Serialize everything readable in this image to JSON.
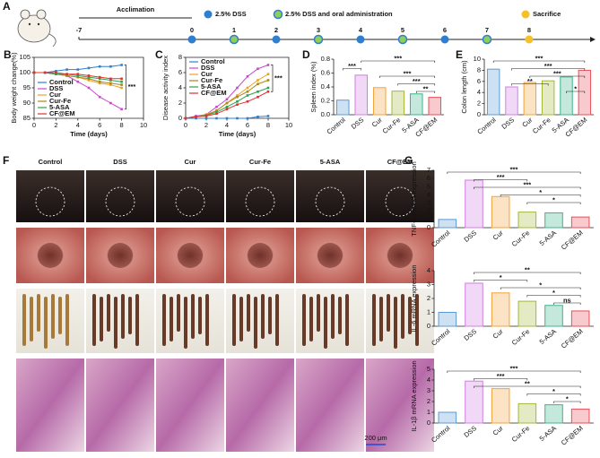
{
  "chart_data": [
    {
      "type": "timeline",
      "panel": "A",
      "annotation": "Acclimation",
      "x": [
        -7,
        0,
        1,
        2,
        3,
        4,
        5,
        6,
        7,
        8
      ],
      "series": [
        {
          "name": "2.5% DSS",
          "color": "#2f7fd0",
          "x": [
            0,
            2,
            4,
            6
          ]
        },
        {
          "name": "2.5% DSS and oral administration",
          "color": "#8fce5a",
          "x": [
            1,
            3,
            5,
            7
          ]
        },
        {
          "name": "Sacrifice",
          "color": "#f5c02a",
          "x": [
            8
          ]
        }
      ]
    },
    {
      "type": "line",
      "panel": "B",
      "ylabel": "Body weight change(%)",
      "xlabel": "Time (days)",
      "x": [
        0,
        1,
        2,
        3,
        4,
        5,
        6,
        7,
        8
      ],
      "xlim": [
        0,
        10
      ],
      "xticks": [
        0,
        2,
        4,
        6,
        8,
        10
      ],
      "ylim": [
        85,
        105
      ],
      "yticks": [
        85,
        90,
        95,
        100,
        105
      ],
      "legend": "lower-left",
      "annotation": "***",
      "series": [
        {
          "name": "Control",
          "color": "#2f7fd0",
          "values": [
            100,
            100,
            100.5,
            101,
            101,
            101.5,
            102,
            102,
            102.5
          ]
        },
        {
          "name": "DSS",
          "color": "#c848c8",
          "values": [
            100,
            100,
            99.5,
            99,
            97,
            95,
            92,
            90,
            88
          ]
        },
        {
          "name": "Cur",
          "color": "#f0a020",
          "values": [
            100,
            100,
            99.5,
            99,
            98.5,
            97.5,
            96.5,
            96,
            95
          ]
        },
        {
          "name": "Cur-Fe",
          "color": "#a8861c",
          "values": [
            100,
            100,
            99.5,
            99,
            98.5,
            98,
            97,
            96.5,
            96
          ]
        },
        {
          "name": "5-ASA",
          "color": "#2fa050",
          "values": [
            100,
            100,
            99.5,
            99.5,
            99,
            98.5,
            98,
            97.5,
            97
          ]
        },
        {
          "name": "CF@EM",
          "color": "#e03030",
          "values": [
            100,
            100,
            100,
            99.5,
            99.5,
            99,
            98.5,
            98,
            98
          ]
        }
      ]
    },
    {
      "type": "line",
      "panel": "C",
      "ylabel": "Disease activity index",
      "xlabel": "Time (days)",
      "x": [
        0,
        1,
        2,
        3,
        4,
        5,
        6,
        7,
        8
      ],
      "xlim": [
        0,
        10
      ],
      "xticks": [
        0,
        2,
        4,
        6,
        8,
        10
      ],
      "ylim": [
        0,
        8
      ],
      "yticks": [
        0,
        2,
        4,
        6,
        8
      ],
      "legend": "upper-left",
      "annotation": "***",
      "series": [
        {
          "name": "Control",
          "color": "#2f7fd0",
          "values": [
            0,
            0,
            0,
            0,
            0,
            0,
            0,
            0.2,
            0.3
          ]
        },
        {
          "name": "DSS",
          "color": "#c848c8",
          "values": [
            0,
            0.3,
            0.5,
            1.5,
            2.5,
            4,
            5.5,
            6.5,
            7
          ]
        },
        {
          "name": "Cur",
          "color": "#f0a020",
          "values": [
            0,
            0.2,
            0.5,
            1,
            2,
            3,
            4,
            5,
            5.8
          ]
        },
        {
          "name": "Cur-Fe",
          "color": "#a8861c",
          "values": [
            0,
            0.2,
            0.4,
            1,
            2,
            2.8,
            3.5,
            4.5,
            5
          ]
        },
        {
          "name": "5-ASA",
          "color": "#2fa050",
          "values": [
            0,
            0.2,
            0.4,
            0.8,
            1.5,
            2.2,
            3,
            3.5,
            4
          ]
        },
        {
          "name": "CF@EM",
          "color": "#e03030",
          "values": [
            0,
            0.2,
            0.3,
            0.6,
            1.2,
            1.8,
            2.2,
            2.8,
            3.5
          ]
        }
      ]
    },
    {
      "type": "bar",
      "panel": "D",
      "ylabel": "Spleen index (%)",
      "categories": [
        "Control",
        "DSS",
        "Cur",
        "Cur-Fe",
        "5-ASA",
        "CF@EM"
      ],
      "values": [
        0.21,
        0.57,
        0.39,
        0.34,
        0.3,
        0.25
      ],
      "colors": [
        "#5b9bd5",
        "#d27fe0",
        "#f2a33a",
        "#a3b83c",
        "#3cb48c",
        "#e8505a"
      ],
      "ylim": [
        0,
        0.8
      ],
      "yticks": [
        {
          "value": 0,
          "label": "0.0"
        },
        0.2,
        0.4,
        0.6,
        0.8
      ],
      "annotations": [
        "***",
        "***",
        "***",
        "***",
        "**"
      ]
    },
    {
      "type": "bar",
      "panel": "E",
      "ylabel": "Colon length (cm)",
      "categories": [
        "Control",
        "DSS",
        "Cur",
        "Cur-Fe",
        "5-ASA",
        "CF@EM"
      ],
      "values": [
        8.2,
        5,
        5.8,
        6.1,
        6.8,
        8
      ],
      "colors": [
        "#5b9bd5",
        "#d27fe0",
        "#f2a33a",
        "#a3b83c",
        "#3cb48c",
        "#e8505a"
      ],
      "ylim": [
        0,
        10
      ],
      "yticks": [
        0,
        2,
        4,
        6,
        8,
        10
      ],
      "annotations": [
        "***",
        "***",
        "***",
        "**",
        "*"
      ]
    },
    {
      "type": "image-grid",
      "panel": "F",
      "categories": [
        "Control",
        "DSS",
        "Cur",
        "Cur-Fe",
        "5-ASA",
        "CF@EM"
      ],
      "scale_bar": "200 μm"
    },
    {
      "type": "bar",
      "panel": "G",
      "ylabel": "TNF-α mRNA expression",
      "categories": [
        "Control",
        "DSS",
        "Cur",
        "Cur-Fe",
        "5-ASA",
        "CF@EM"
      ],
      "values": [
        1,
        5.8,
        3.8,
        1.9,
        1.8,
        1.3
      ],
      "colors": [
        "#5b9bd5",
        "#d27fe0",
        "#f2a33a",
        "#a3b83c",
        "#3cb48c",
        "#e8505a"
      ],
      "ylim": [
        0,
        7
      ],
      "yticks": [
        0,
        1,
        2,
        3,
        4,
        5,
        6,
        7
      ],
      "annotations": [
        "***",
        "***",
        "***",
        "*",
        "*"
      ]
    },
    {
      "type": "bar",
      "ylabel": "IL-6 mRNA expression",
      "categories": [
        "Control",
        "DSS",
        "Cur",
        "Cur-Fe",
        "5-ASA",
        "CF@EM"
      ],
      "values": [
        1,
        3.1,
        2.4,
        1.8,
        1.5,
        1.1
      ],
      "colors": [
        "#5b9bd5",
        "#d27fe0",
        "#f2a33a",
        "#a3b83c",
        "#3cb48c",
        "#e8505a"
      ],
      "ylim": [
        0,
        4
      ],
      "yticks": [
        0,
        1,
        2,
        3,
        4
      ],
      "annotations": [
        "**",
        "*",
        "*",
        "*",
        "ns"
      ]
    },
    {
      "type": "bar",
      "ylabel": "IL-1β mRNA expression",
      "categories": [
        "Control",
        "DSS",
        "Cur",
        "Cur-Fe",
        "5-ASA",
        "CF@EM"
      ],
      "values": [
        1,
        3.9,
        3.2,
        1.8,
        1.7,
        1.3
      ],
      "colors": [
        "#5b9bd5",
        "#d27fe0",
        "#f2a33a",
        "#a3b83c",
        "#3cb48c",
        "#e8505a"
      ],
      "ylim": [
        0,
        5
      ],
      "yticks": [
        0,
        1,
        2,
        3,
        4,
        5
      ],
      "annotations": [
        "***",
        "***",
        "**",
        "*",
        "*"
      ]
    }
  ]
}
